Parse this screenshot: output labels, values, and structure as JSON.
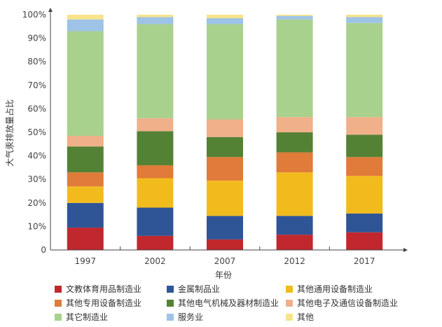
{
  "chart_data": {
    "type": "bar",
    "stacked": true,
    "categories": [
      "1997",
      "2002",
      "2007",
      "2012",
      "2017"
    ],
    "xlabel": "年份",
    "ylabel": "大气汞排放量占比",
    "ylim": [
      0,
      100
    ],
    "yticks": [
      "0",
      "10%",
      "20%",
      "30%",
      "40%",
      "50%",
      "60%",
      "70%",
      "80%",
      "90%",
      "100%"
    ],
    "legend_position": "bottom",
    "series": [
      {
        "name": "文教体育用品制造业",
        "color": "#c0282d",
        "values": [
          9.5,
          6,
          4.5,
          6.5,
          7.5
        ]
      },
      {
        "name": "金属制品业",
        "color": "#2f5597",
        "values": [
          10.5,
          12,
          10,
          8,
          8
        ]
      },
      {
        "name": "其他通用设备制造业",
        "color": "#f2bb1d",
        "values": [
          7,
          12.5,
          15,
          18.5,
          16
        ]
      },
      {
        "name": "其他专用设备制造业",
        "color": "#e07b39",
        "values": [
          6,
          5.5,
          10,
          8.5,
          8
        ]
      },
      {
        "name": "其他电气机械及器材制造业",
        "color": "#548235",
        "values": [
          11,
          14.5,
          8.5,
          8.5,
          9.5
        ]
      },
      {
        "name": "其他电子及通信设备制造业",
        "color": "#f0b08a",
        "values": [
          4.5,
          5.5,
          7.5,
          6.5,
          7.5
        ]
      },
      {
        "name": "其它制造业",
        "color": "#a9d18e",
        "values": [
          44.5,
          40,
          40.5,
          41.5,
          40
        ]
      },
      {
        "name": "服务业",
        "color": "#9dc3e6",
        "values": [
          5,
          3,
          2.5,
          1.5,
          2.5
        ]
      },
      {
        "name": "其他",
        "color": "#f7e48a",
        "values": [
          2,
          1,
          1.5,
          0.5,
          1
        ]
      }
    ]
  }
}
